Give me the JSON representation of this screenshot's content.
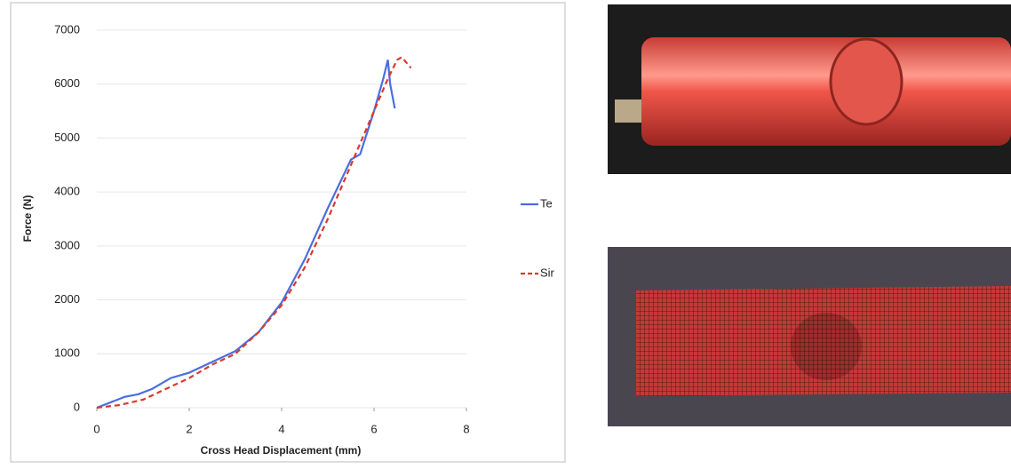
{
  "chart_data": {
    "type": "line",
    "x_label": "Cross Head Displacement (mm)",
    "y_label": "Force (N)",
    "xlim": [
      0,
      8
    ],
    "xticks": [
      0,
      2,
      4,
      6,
      8
    ],
    "ylim": [
      0,
      7000
    ],
    "yticks": [
      0,
      1000,
      2000,
      3000,
      4000,
      5000,
      6000,
      7000
    ],
    "grid": true,
    "series": [
      {
        "name": "Te",
        "color": "#4a6ee0",
        "dash": false,
        "x": [
          0,
          0.3,
          0.6,
          0.9,
          1.2,
          1.6,
          2,
          2.5,
          3,
          3.5,
          4,
          4.5,
          5,
          5.5,
          5.7,
          6,
          6.2,
          6.3,
          6.35,
          6.45
        ],
        "values": [
          0,
          100,
          200,
          250,
          350,
          550,
          650,
          850,
          1050,
          1400,
          1950,
          2750,
          3700,
          4600,
          4700,
          5500,
          6100,
          6450,
          6000,
          5550
        ]
      },
      {
        "name": "Sir",
        "color": "#d93a2b",
        "dash": true,
        "x": [
          0,
          0.5,
          1,
          1.5,
          2,
          2.5,
          3,
          3.5,
          4,
          4.5,
          5,
          5.5,
          6,
          6.3,
          6.5,
          6.6,
          6.7,
          6.8
        ],
        "values": [
          0,
          50,
          150,
          350,
          550,
          800,
          1000,
          1400,
          1900,
          2600,
          3500,
          4500,
          5500,
          6100,
          6450,
          6500,
          6400,
          6300
        ]
      }
    ]
  }
}
